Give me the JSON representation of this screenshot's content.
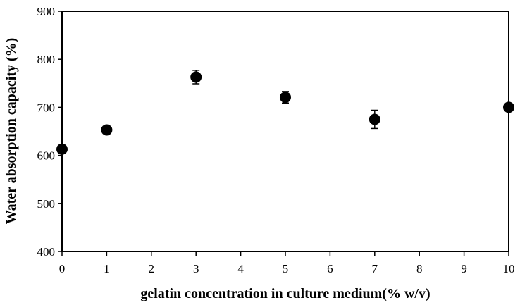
{
  "chart_data": {
    "type": "scatter",
    "title": "",
    "xlabel": "gelatin concentration in culture medium(% w/v)",
    "ylabel": "Water absorption capacity (%)",
    "xlim": [
      0,
      10
    ],
    "ylim": [
      400,
      900
    ],
    "x_ticks": [
      "0",
      "1",
      "2",
      "3",
      "4",
      "5",
      "6",
      "7",
      "8",
      "9",
      "10"
    ],
    "y_ticks": [
      "400",
      "500",
      "600",
      "700",
      "800",
      "900"
    ],
    "grid": false,
    "legend": "none",
    "marker_color": "#000000",
    "series": [
      {
        "x": [
          0,
          1,
          3,
          5,
          7,
          10
        ],
        "y": [
          613,
          653,
          763,
          721,
          675,
          700
        ],
        "error": [
          0,
          0,
          14,
          12,
          19,
          0
        ]
      }
    ]
  }
}
